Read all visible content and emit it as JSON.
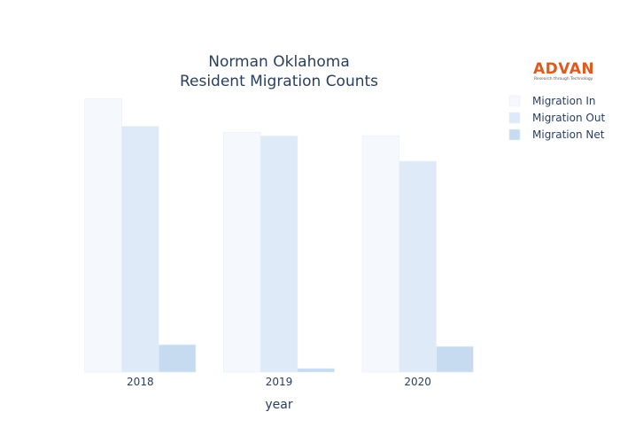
{
  "chart_data": {
    "type": "bar",
    "title_lines": [
      "Norman Oklahoma",
      "Resident Migration Counts"
    ],
    "xlabel": "year",
    "ylabel": "",
    "categories": [
      "2018",
      "2019",
      "2020"
    ],
    "series": [
      {
        "name": "Migration In",
        "color": "#f5f9fe",
        "values": [
          9060,
          7950,
          7840
        ]
      },
      {
        "name": "Migration Out",
        "color": "#deeaf7",
        "values": [
          8150,
          7830,
          6990
        ]
      },
      {
        "name": "Migration Net",
        "color": "#c6dbef",
        "values": [
          910,
          120,
          850
        ]
      }
    ],
    "ylim": [
      0,
      9400
    ],
    "grid": false,
    "show_y_ticks": false,
    "legend_position": "top-right"
  },
  "logo": {
    "name": "ADVAN",
    "tagline": "Research through Technology",
    "color": "#e05a1e"
  }
}
